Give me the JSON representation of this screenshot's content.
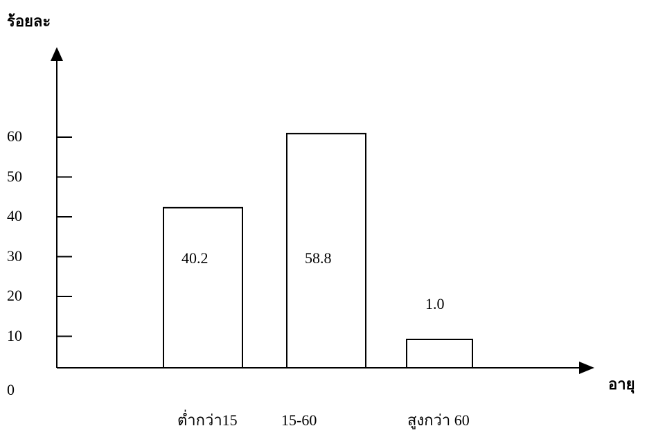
{
  "chart_data": {
    "type": "bar",
    "title": "",
    "ylabel": "ร้อยละ",
    "xlabel": "อายุ",
    "categories": [
      "ต่ำกว่า15",
      "15-60",
      "สูงกว่า 60"
    ],
    "values": [
      40.2,
      58.8,
      1.0
    ],
    "value_labels": [
      "40.2",
      "58.8",
      "1.0"
    ],
    "yticks": [
      "10",
      "20",
      "30",
      "40",
      "50",
      "60"
    ],
    "origin_label": "0",
    "ylim": [
      0,
      70
    ],
    "grid": false,
    "legend": "none",
    "bar_fill": "#ffffff",
    "bar_stroke": "#000000"
  }
}
